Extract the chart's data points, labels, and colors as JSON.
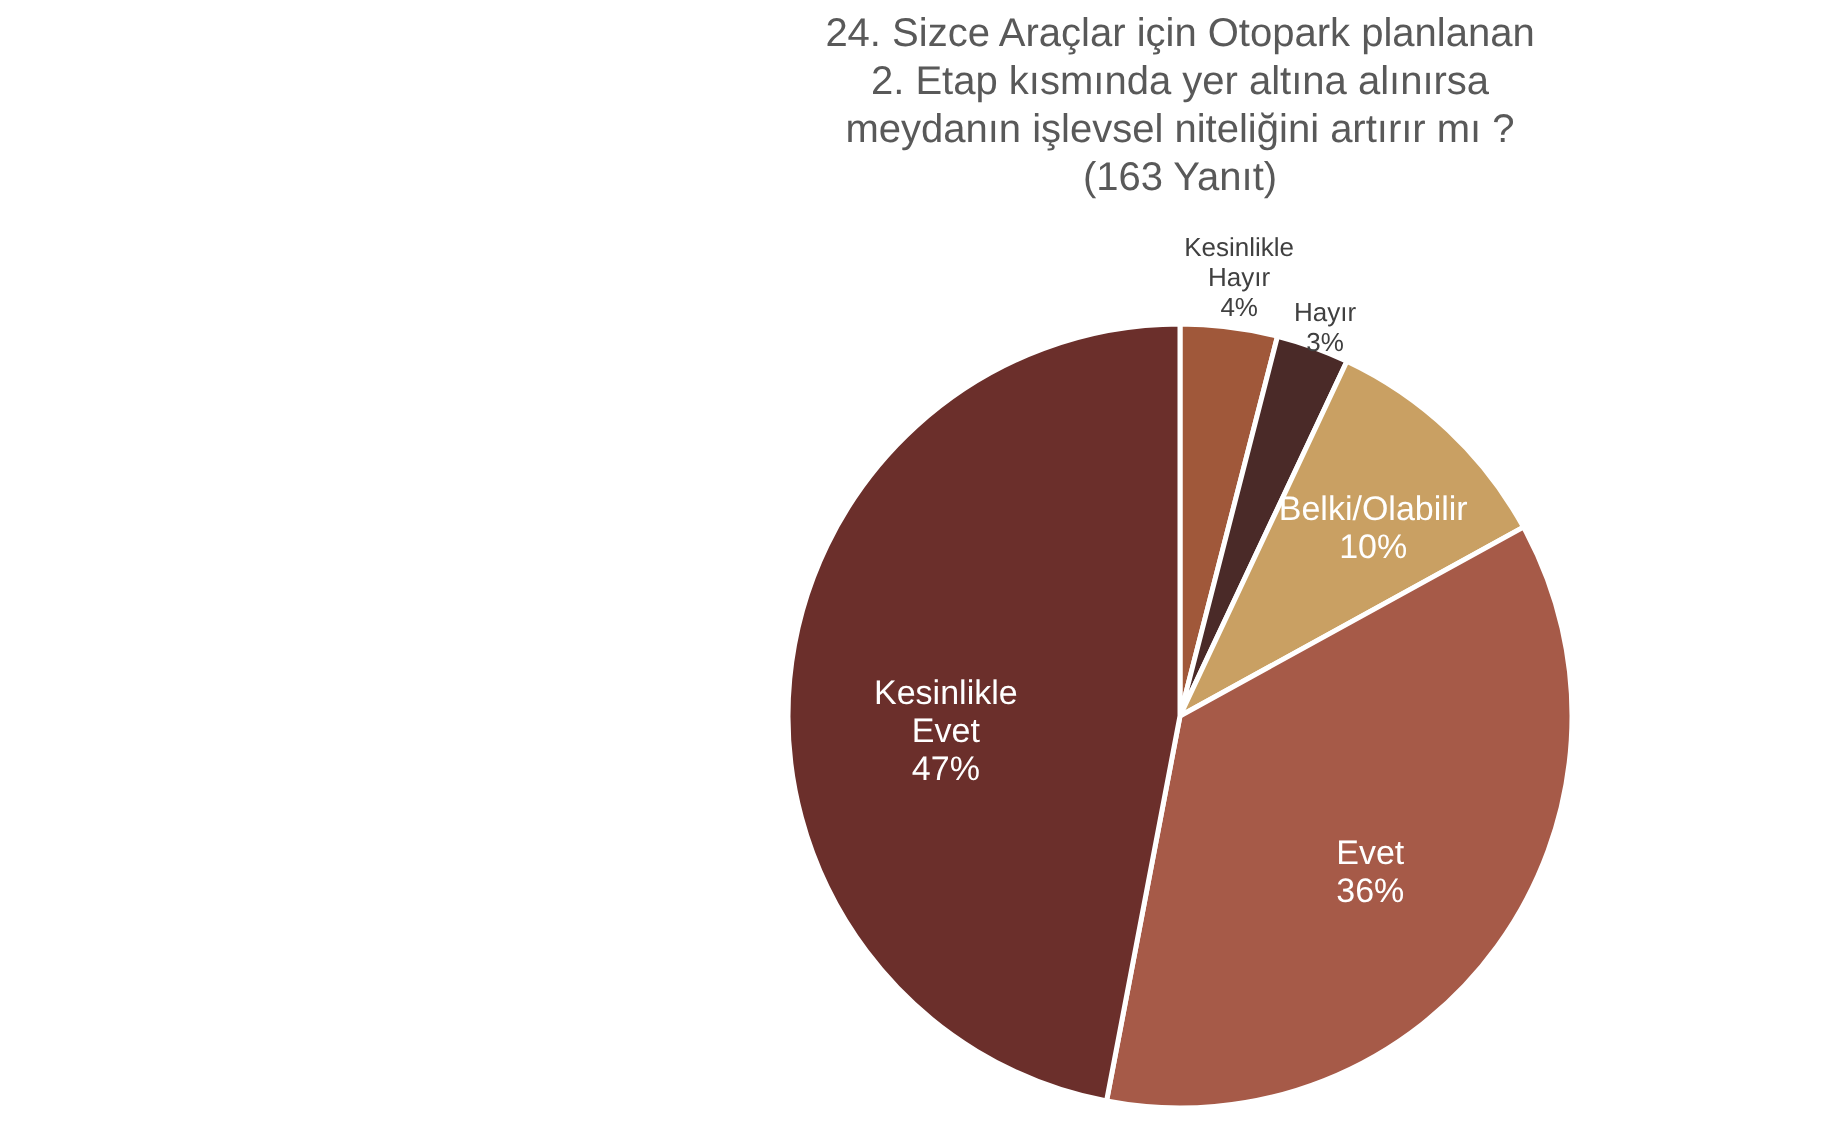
{
  "chart_data": {
    "type": "pie",
    "title": [
      "24. Sizce Araçlar için Otopark planlanan",
      "2. Etap kısmında yer altına alınırsa",
      "meydanın işlevsel niteliğini artırır mı ?",
      "(163 Yanıt)"
    ],
    "categories": [
      "Kesinlikle Hayır",
      "Hayır",
      "Belki/Olabilir",
      "Evet",
      "Kesinlikle Evet"
    ],
    "values": [
      4,
      3,
      10,
      36,
      47
    ],
    "value_labels": [
      "4%",
      "3%",
      "10%",
      "36%",
      "47%"
    ],
    "colors": [
      "#a0583a",
      "#4a2a28",
      "#c9a063",
      "#a65a48",
      "#6b2f2b"
    ]
  }
}
